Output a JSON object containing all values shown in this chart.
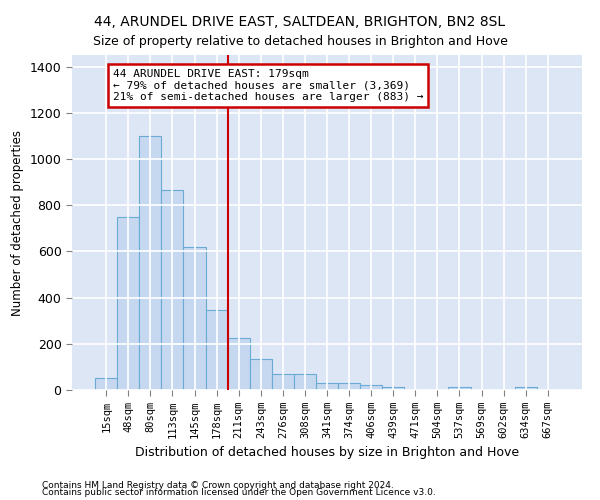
{
  "title": "44, ARUNDEL DRIVE EAST, SALTDEAN, BRIGHTON, BN2 8SL",
  "subtitle": "Size of property relative to detached houses in Brighton and Hove",
  "xlabel": "Distribution of detached houses by size in Brighton and Hove",
  "ylabel": "Number of detached properties",
  "footnote1": "Contains HM Land Registry data © Crown copyright and database right 2024.",
  "footnote2": "Contains public sector information licensed under the Open Government Licence v3.0.",
  "bar_labels": [
    "15sqm",
    "48sqm",
    "80sqm",
    "113sqm",
    "145sqm",
    "178sqm",
    "211sqm",
    "243sqm",
    "276sqm",
    "308sqm",
    "341sqm",
    "374sqm",
    "406sqm",
    "439sqm",
    "471sqm",
    "504sqm",
    "537sqm",
    "569sqm",
    "602sqm",
    "634sqm",
    "667sqm"
  ],
  "bar_values": [
    50,
    750,
    1100,
    865,
    618,
    348,
    225,
    135,
    68,
    68,
    32,
    32,
    22,
    15,
    0,
    0,
    12,
    0,
    0,
    12,
    0
  ],
  "bar_color": "#c5d8f0",
  "bar_edge_color": "#6aaad4",
  "vline_x": 5.5,
  "vline_color": "#cc0000",
  "annotation_text": "44 ARUNDEL DRIVE EAST: 179sqm\n← 79% of detached houses are smaller (3,369)\n21% of semi-detached houses are larger (883) →",
  "annotation_box_color": "white",
  "annotation_box_edge": "#cc0000",
  "ylim": [
    0,
    1450
  ],
  "yticks": [
    0,
    200,
    400,
    600,
    800,
    1000,
    1200,
    1400
  ],
  "plot_bg": "#dce6f5",
  "grid_color": "white",
  "title_fontsize": 10,
  "subtitle_fontsize": 9
}
